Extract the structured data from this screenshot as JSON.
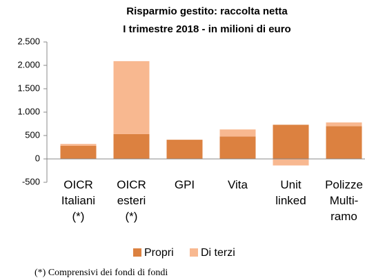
{
  "chart_data": {
    "type": "stacked-bar",
    "title": "Risparmio gestito: raccolta netta",
    "subtitle": "I trimestre 2018  - in milioni di euro",
    "categories": [
      "OICR\nItaliani\n(*)",
      "OICR\nesteri\n(*)",
      "GPI",
      "Vita",
      "Unit\nlinked",
      "Polizze\nMulti-\nramo"
    ],
    "series": [
      {
        "name": "Propri",
        "color": "#dc8140",
        "values": [
          280,
          530,
          410,
          480,
          730,
          700
        ]
      },
      {
        "name": "Di terzi",
        "color": "#f8b890",
        "values": [
          40,
          1560,
          0,
          150,
          -140,
          80
        ]
      }
    ],
    "ylim": [
      -500,
      2500
    ],
    "yticks": [
      -500,
      0,
      500,
      {
        "value": 1000,
        "label": "1.000"
      },
      {
        "value": 1500,
        "label": "1.500"
      },
      {
        "value": 2000,
        "label": "2.000"
      },
      {
        "value": 2500,
        "label": "2.500"
      }
    ],
    "legend": "bottom",
    "note": "(*) Comprensivi dei fondi di fondi"
  }
}
